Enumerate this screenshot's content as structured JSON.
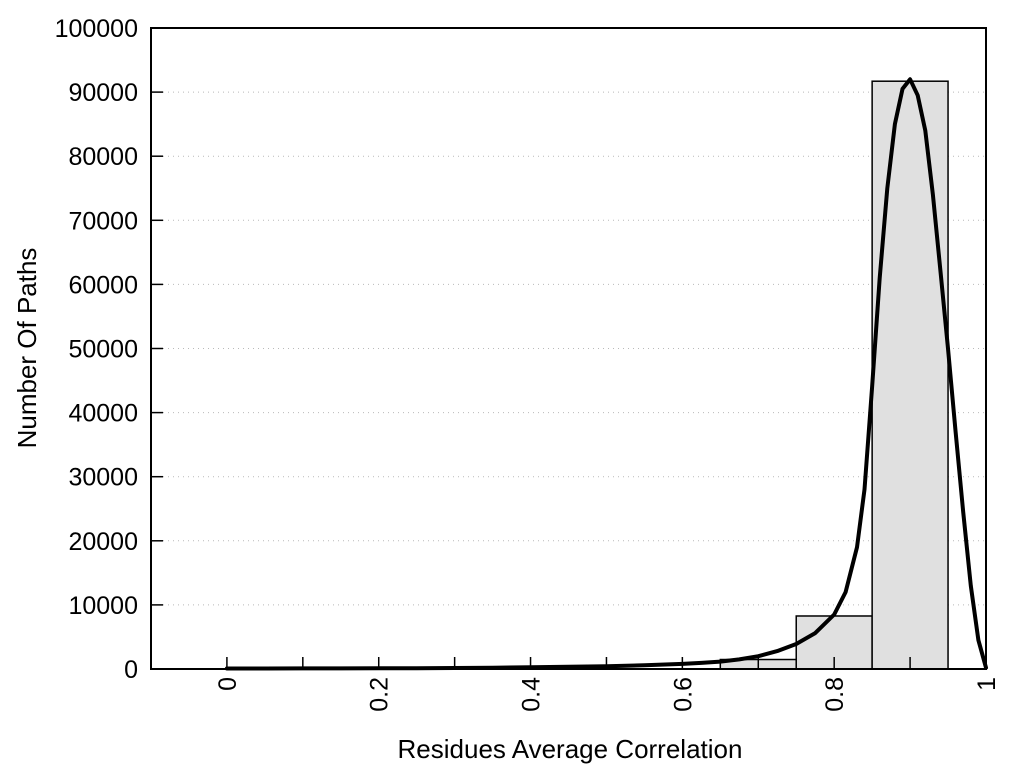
{
  "figure": {
    "background": "#ffffff"
  },
  "chart_data": {
    "type": "bar",
    "subtype": "histogram_with_fit_curve",
    "title": "",
    "xlabel": "Residues Average Correlation",
    "ylabel": "Number Of Paths",
    "xlim": [
      -0.1,
      1.0
    ],
    "ylim": [
      0,
      100000
    ],
    "grid": "horizontal dotted gridlines at every 10000",
    "legend": "none",
    "x_tick_values": [
      0,
      0.1,
      0.2,
      0.3,
      0.4,
      0.5,
      0.6,
      0.7,
      0.8,
      0.9,
      1
    ],
    "x_tick_labels": [
      {
        "value": 0,
        "label": "0"
      },
      {
        "value": 0.2,
        "label": "0.2"
      },
      {
        "value": 0.4,
        "label": "0.4"
      },
      {
        "value": 0.6,
        "label": "0.6"
      },
      {
        "value": 0.8,
        "label": "0.8"
      },
      {
        "value": 1,
        "label": "1"
      }
    ],
    "y_tick_labels": [
      {
        "value": 0,
        "label": "0"
      },
      {
        "value": 10000,
        "label": "10000"
      },
      {
        "value": 20000,
        "label": "20000"
      },
      {
        "value": 30000,
        "label": "30000"
      },
      {
        "value": 40000,
        "label": "40000"
      },
      {
        "value": 50000,
        "label": "50000"
      },
      {
        "value": 60000,
        "label": "60000"
      },
      {
        "value": 70000,
        "label": "70000"
      },
      {
        "value": 80000,
        "label": "80000"
      },
      {
        "value": 90000,
        "label": "90000"
      },
      {
        "value": 100000,
        "label": "100000"
      }
    ],
    "grid_y_values": [
      10000,
      20000,
      30000,
      40000,
      50000,
      60000,
      70000,
      80000,
      90000
    ],
    "bars": [
      {
        "x0": 0.65,
        "x1": 0.75,
        "count": 1480
      },
      {
        "x0": 0.75,
        "x1": 0.85,
        "count": 8270
      },
      {
        "x0": 0.85,
        "x1": 0.95,
        "count": 91700
      }
    ],
    "curve_peak": {
      "x": 0.9,
      "y": 92000
    },
    "curve_points": [
      [
        0,
        80
      ],
      [
        0.05,
        80
      ],
      [
        0.1,
        90
      ],
      [
        0.15,
        100
      ],
      [
        0.2,
        110
      ],
      [
        0.25,
        130
      ],
      [
        0.3,
        160
      ],
      [
        0.35,
        200
      ],
      [
        0.4,
        260
      ],
      [
        0.45,
        340
      ],
      [
        0.5,
        440
      ],
      [
        0.55,
        580
      ],
      [
        0.6,
        800
      ],
      [
        0.625,
        950
      ],
      [
        0.65,
        1150
      ],
      [
        0.675,
        1500
      ],
      [
        0.7,
        2000
      ],
      [
        0.725,
        2800
      ],
      [
        0.75,
        3900
      ],
      [
        0.775,
        5600
      ],
      [
        0.8,
        8500
      ],
      [
        0.815,
        12000
      ],
      [
        0.83,
        19000
      ],
      [
        0.84,
        28000
      ],
      [
        0.85,
        44000
      ],
      [
        0.86,
        61000
      ],
      [
        0.87,
        75000
      ],
      [
        0.88,
        85000
      ],
      [
        0.89,
        90500
      ],
      [
        0.9,
        92000
      ],
      [
        0.91,
        89500
      ],
      [
        0.92,
        84000
      ],
      [
        0.93,
        74000
      ],
      [
        0.94,
        62000
      ],
      [
        0.95,
        50000
      ],
      [
        0.96,
        37000
      ],
      [
        0.97,
        24500
      ],
      [
        0.98,
        13000
      ],
      [
        0.99,
        4500
      ],
      [
        1,
        200
      ]
    ],
    "colors": {
      "background": "#ffffff",
      "bar_fill": "#e0e0e0",
      "bar_border": "#000000",
      "curve": "#000000",
      "axis": "#000000",
      "grid": "#b9b9b9",
      "text": "#000000"
    }
  }
}
